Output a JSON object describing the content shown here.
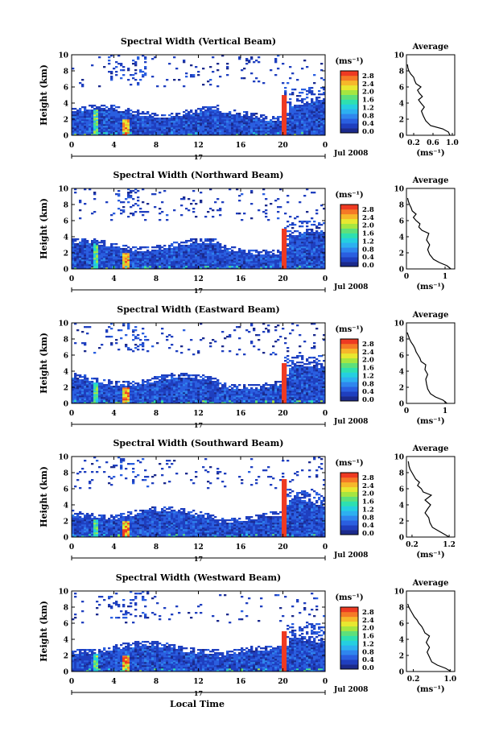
{
  "figure": {
    "xlabel": "Local Time",
    "date_label": "Jul 2008",
    "day_label": "17",
    "cb_units": "(ms⁻¹)",
    "avg_title": "Average",
    "avg_xlabel": "(ms⁻¹)",
    "ylabel": "Height (km)"
  },
  "chart_data": [
    {
      "type": "heatmap",
      "title": "Spectral Width (Vertical Beam)",
      "ylabel": "Height (km)",
      "xticks": [
        "0",
        "4",
        "8",
        "12",
        "16",
        "20",
        "0"
      ],
      "yticks": [
        "0",
        "2",
        "4",
        "6",
        "8",
        "10"
      ],
      "xlim": [
        0,
        24
      ],
      "ylim": [
        0,
        10
      ],
      "colorbar": {
        "units": "(ms⁻¹)",
        "ticks": [
          "2.8",
          "2.4",
          "2.0",
          "1.6",
          "1.2",
          "0.8",
          "0.4",
          "0.0"
        ],
        "range": [
          0,
          2.8
        ]
      },
      "profile": {
        "title": "Average",
        "xlabel": "(ms⁻¹)",
        "xticks": [
          "0.2",
          "0.6",
          "1.0"
        ],
        "tickvals": [
          0.2,
          0.6,
          1.0
        ],
        "xlim": [
          0.05,
          1.05
        ],
        "yticks": [
          "0",
          "2",
          "4",
          "6",
          "8",
          "10"
        ],
        "ylim": [
          0,
          10
        ],
        "points": [
          [
            0.95,
            0
          ],
          [
            0.92,
            0.4
          ],
          [
            0.8,
            0.8
          ],
          [
            0.55,
            1.2
          ],
          [
            0.45,
            1.8
          ],
          [
            0.4,
            2.4
          ],
          [
            0.36,
            3.0
          ],
          [
            0.42,
            3.5
          ],
          [
            0.35,
            4.0
          ],
          [
            0.3,
            4.4
          ],
          [
            0.38,
            4.8
          ],
          [
            0.32,
            5.2
          ],
          [
            0.28,
            5.6
          ],
          [
            0.35,
            6.0
          ],
          [
            0.25,
            6.4
          ],
          [
            0.22,
            6.8
          ],
          [
            0.2,
            7.2
          ],
          [
            0.14,
            7.6
          ],
          [
            0.1,
            8.0
          ],
          [
            0.08,
            8.4
          ],
          [
            0.07,
            8.8
          ]
        ]
      }
    },
    {
      "type": "heatmap",
      "title": "Spectral Width (Northward Beam)",
      "ylabel": "Height (km)",
      "xticks": [
        "0",
        "4",
        "8",
        "12",
        "16",
        "20",
        "0"
      ],
      "yticks": [
        "0",
        "2",
        "4",
        "6",
        "8",
        "10"
      ],
      "xlim": [
        0,
        24
      ],
      "ylim": [
        0,
        10
      ],
      "colorbar": {
        "units": "(ms⁻¹)",
        "ticks": [
          "2.8",
          "2.4",
          "2.0",
          "1.6",
          "1.2",
          "0.8",
          "0.4",
          "0.0"
        ],
        "range": [
          0,
          2.8
        ]
      },
      "profile": {
        "title": "Average",
        "xlabel": "(ms⁻¹)",
        "xticks": [
          "0",
          "1"
        ],
        "tickvals": [
          0,
          1
        ],
        "xlim": [
          0,
          1.25
        ],
        "yticks": [
          "0",
          "2",
          "4",
          "6",
          "8",
          "10"
        ],
        "ylim": [
          0,
          10
        ],
        "points": [
          [
            1.15,
            0
          ],
          [
            1.05,
            0.4
          ],
          [
            0.85,
            0.8
          ],
          [
            0.7,
            1.2
          ],
          [
            0.6,
            1.8
          ],
          [
            0.55,
            2.4
          ],
          [
            0.6,
            3.0
          ],
          [
            0.52,
            3.6
          ],
          [
            0.58,
            4.4
          ],
          [
            0.4,
            4.8
          ],
          [
            0.32,
            5.2
          ],
          [
            0.35,
            5.6
          ],
          [
            0.25,
            6.0
          ],
          [
            0.18,
            6.4
          ],
          [
            0.25,
            6.8
          ],
          [
            0.15,
            7.2
          ],
          [
            0.12,
            7.6
          ],
          [
            0.08,
            8.0
          ],
          [
            0.05,
            8.4
          ],
          [
            0.03,
            8.8
          ]
        ]
      }
    },
    {
      "type": "heatmap",
      "title": "Spectral Width (Eastward Beam)",
      "ylabel": "Height (km)",
      "xticks": [
        "0",
        "4",
        "8",
        "12",
        "16",
        "20",
        "0"
      ],
      "yticks": [
        "0",
        "2",
        "4",
        "6",
        "8",
        "10"
      ],
      "xlim": [
        0,
        24
      ],
      "ylim": [
        0,
        10
      ],
      "colorbar": {
        "units": "(ms⁻¹)",
        "ticks": [
          "2.8",
          "2.4",
          "2.0",
          "1.6",
          "1.2",
          "0.8",
          "0.4",
          "0.0"
        ],
        "range": [
          0,
          2.8
        ]
      },
      "profile": {
        "title": "Average",
        "xlabel": "(ms⁻¹)",
        "xticks": [
          "0",
          "1"
        ],
        "tickvals": [
          0,
          1
        ],
        "xlim": [
          0,
          1.25
        ],
        "yticks": [
          "0",
          "2",
          "4",
          "6",
          "8",
          "10"
        ],
        "ylim": [
          0,
          10
        ],
        "points": [
          [
            1.05,
            0
          ],
          [
            0.95,
            0.4
          ],
          [
            0.75,
            0.8
          ],
          [
            0.62,
            1.2
          ],
          [
            0.55,
            1.8
          ],
          [
            0.52,
            2.4
          ],
          [
            0.5,
            3.0
          ],
          [
            0.55,
            3.6
          ],
          [
            0.48,
            4.2
          ],
          [
            0.5,
            4.8
          ],
          [
            0.38,
            5.2
          ],
          [
            0.35,
            5.6
          ],
          [
            0.3,
            6.0
          ],
          [
            0.25,
            6.4
          ],
          [
            0.22,
            6.8
          ],
          [
            0.18,
            7.2
          ],
          [
            0.12,
            7.6
          ],
          [
            0.08,
            8.0
          ],
          [
            0.05,
            8.4
          ],
          [
            0.02,
            8.8
          ]
        ]
      }
    },
    {
      "type": "heatmap",
      "title": "Spectral Width (Southward Beam)",
      "ylabel": "Height (km)",
      "xticks": [
        "0",
        "4",
        "8",
        "12",
        "16",
        "20",
        "0"
      ],
      "yticks": [
        "0",
        "2",
        "4",
        "6",
        "8",
        "10"
      ],
      "xlim": [
        0,
        24
      ],
      "ylim": [
        0,
        10
      ],
      "colorbar": {
        "units": "(ms⁻¹)",
        "ticks": [
          "2.8",
          "2.4",
          "2.0",
          "1.6",
          "1.2",
          "0.8",
          "0.4",
          "0.0"
        ],
        "range": [
          0,
          2.8
        ]
      },
      "profile": {
        "title": "Average",
        "xlabel": "(ms⁻¹)",
        "xticks": [
          "0.2",
          "1.2"
        ],
        "tickvals": [
          0.2,
          1.2
        ],
        "xlim": [
          0.05,
          1.35
        ],
        "yticks": [
          "0",
          "2",
          "4",
          "6",
          "8",
          "10"
        ],
        "ylim": [
          0,
          10
        ],
        "points": [
          [
            1.2,
            0
          ],
          [
            1.05,
            0.4
          ],
          [
            0.9,
            0.8
          ],
          [
            0.75,
            1.2
          ],
          [
            0.68,
            1.8
          ],
          [
            0.65,
            2.4
          ],
          [
            0.55,
            3.0
          ],
          [
            0.62,
            3.5
          ],
          [
            0.7,
            4.0
          ],
          [
            0.55,
            4.6
          ],
          [
            0.72,
            5.2
          ],
          [
            0.5,
            5.6
          ],
          [
            0.45,
            6.0
          ],
          [
            0.35,
            6.4
          ],
          [
            0.4,
            6.8
          ],
          [
            0.3,
            7.2
          ],
          [
            0.25,
            7.6
          ],
          [
            0.2,
            8.0
          ],
          [
            0.15,
            8.4
          ],
          [
            0.12,
            8.8
          ],
          [
            0.1,
            9.4
          ]
        ]
      }
    },
    {
      "type": "heatmap",
      "title": "Spectral Width (Westward Beam)",
      "ylabel": "Height (km)",
      "xticks": [
        "0",
        "4",
        "8",
        "12",
        "16",
        "20",
        "0"
      ],
      "yticks": [
        "0",
        "2",
        "4",
        "6",
        "8",
        "10"
      ],
      "xlim": [
        0,
        24
      ],
      "ylim": [
        0,
        10
      ],
      "colorbar": {
        "units": "(ms⁻¹)",
        "ticks": [
          "2.8",
          "2.4",
          "2.0",
          "1.6",
          "1.2",
          "0.8",
          "0.4",
          "0.0"
        ],
        "range": [
          0,
          2.8
        ]
      },
      "profile": {
        "title": "Average",
        "xlabel": "(ms⁻¹)",
        "xticks": [
          "0.2",
          "1.0"
        ],
        "tickvals": [
          0.2,
          1.0
        ],
        "xlim": [
          0.05,
          1.1
        ],
        "yticks": [
          "0",
          "2",
          "4",
          "6",
          "8",
          "10"
        ],
        "ylim": [
          0,
          10
        ],
        "points": [
          [
            1.02,
            0
          ],
          [
            0.9,
            0.4
          ],
          [
            0.72,
            0.8
          ],
          [
            0.6,
            1.2
          ],
          [
            0.55,
            1.8
          ],
          [
            0.5,
            2.4
          ],
          [
            0.55,
            3.0
          ],
          [
            0.48,
            3.6
          ],
          [
            0.55,
            4.4
          ],
          [
            0.45,
            4.8
          ],
          [
            0.42,
            5.2
          ],
          [
            0.38,
            5.6
          ],
          [
            0.32,
            6.0
          ],
          [
            0.28,
            6.4
          ],
          [
            0.22,
            6.8
          ],
          [
            0.18,
            7.2
          ],
          [
            0.14,
            7.6
          ],
          [
            0.1,
            8.0
          ],
          [
            0.08,
            8.4
          ]
        ]
      }
    }
  ]
}
